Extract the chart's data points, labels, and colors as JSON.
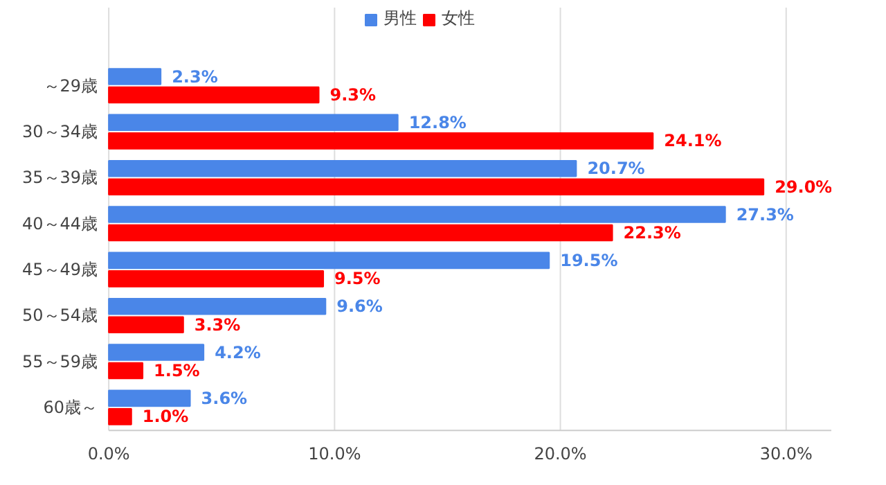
{
  "chart_data": {
    "type": "bar",
    "orientation": "horizontal",
    "categories": [
      "～29歳",
      "30～34歳",
      "35～39歳",
      "40～44歳",
      "45～49歳",
      "50～54歳",
      "55～59歳",
      "60歳～"
    ],
    "series": [
      {
        "name": "男性",
        "color": "#4a86e8",
        "values": [
          2.3,
          12.8,
          20.7,
          27.3,
          19.5,
          9.6,
          4.2,
          3.6
        ],
        "value_labels": [
          "2.3%",
          "12.8%",
          "20.7%",
          "27.3%",
          "19.5%",
          "9.6%",
          "4.2%",
          "3.6%"
        ]
      },
      {
        "name": "女性",
        "color": "#ff0000",
        "values": [
          9.3,
          24.1,
          29.0,
          22.3,
          9.5,
          3.3,
          1.5,
          1.0
        ],
        "value_labels": [
          "9.3%",
          "24.1%",
          "29.0%",
          "22.3%",
          "9.5%",
          "3.3%",
          "1.5%",
          "1.0%"
        ]
      }
    ],
    "xlim": [
      0,
      32
    ],
    "xticks": [
      {
        "value": 0,
        "label": "0.0%"
      },
      {
        "value": 10,
        "label": "10.0%"
      },
      {
        "value": 20,
        "label": "20.0%"
      },
      {
        "value": 30,
        "label": "30.0%"
      }
    ],
    "grid": "x",
    "legend": "top"
  }
}
